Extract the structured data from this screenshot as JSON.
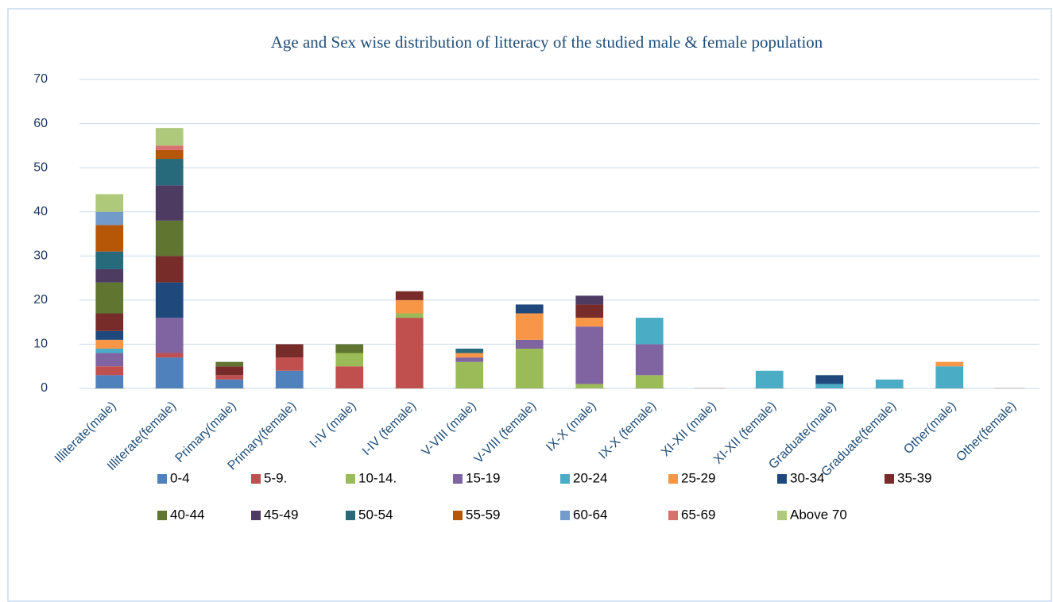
{
  "chart_data": {
    "type": "bar",
    "stacked": true,
    "title": "Age  and Sex wise distribution of litteracy of the studied male & female population",
    "categories": [
      "Illiterate(male)",
      "Illiterate(female)",
      "Primary(male)",
      "Primary(female)",
      "I-IV  (male)",
      "I-IV (female)",
      "V-VIII (male)",
      "V-VIII (female)",
      "IX-X (male)",
      "IX-X (female)",
      "XI-XII (male)",
      "XI-XII  (female)",
      "Graduate(male)",
      "Graduate(female)",
      "Other(male)",
      "Other(female)"
    ],
    "series": [
      {
        "name": "0-4",
        "color": "#4f81bd",
        "values": [
          3,
          7,
          2,
          4,
          0,
          0,
          0,
          0,
          0,
          0,
          0,
          0,
          0,
          0,
          0,
          0
        ]
      },
      {
        "name": "5-9.",
        "color": "#c0504d",
        "values": [
          2,
          1,
          1,
          3,
          5,
          16,
          0,
          0,
          0,
          0,
          0,
          0,
          0,
          0,
          0,
          0
        ]
      },
      {
        "name": "10-14.",
        "color": "#9bbb59",
        "values": [
          0,
          0,
          0,
          0,
          3,
          1,
          6,
          9,
          1,
          3,
          0,
          0,
          0,
          0,
          0,
          0
        ]
      },
      {
        "name": "15-19",
        "color": "#8064a2",
        "values": [
          3,
          8,
          0,
          0,
          0,
          0,
          1,
          2,
          13,
          7,
          0,
          0,
          0,
          0,
          0,
          0
        ]
      },
      {
        "name": "20-24",
        "color": "#4bacc6",
        "values": [
          1,
          0,
          0,
          0,
          0,
          0,
          0,
          0,
          0,
          6,
          0,
          4,
          1,
          2,
          5,
          0
        ]
      },
      {
        "name": "25-29",
        "color": "#f79646",
        "values": [
          2,
          0,
          0,
          0,
          0,
          3,
          1,
          6,
          2,
          0,
          0,
          0,
          0,
          0,
          1,
          0
        ]
      },
      {
        "name": "30-34",
        "color": "#1f497d",
        "values": [
          2,
          8,
          0,
          0,
          0,
          0,
          0,
          2,
          0,
          0,
          0,
          0,
          2,
          0,
          0,
          0
        ]
      },
      {
        "name": "35-39",
        "color": "#772c2a",
        "values": [
          4,
          6,
          2,
          3,
          0,
          2,
          0,
          0,
          3,
          0,
          0,
          0,
          0,
          0,
          0,
          0
        ]
      },
      {
        "name": "40-44",
        "color": "#5f7530",
        "values": [
          7,
          8,
          1,
          0,
          2,
          0,
          0,
          0,
          0,
          0,
          0,
          0,
          0,
          0,
          0,
          0
        ]
      },
      {
        "name": "45-49",
        "color": "#4d3b62",
        "values": [
          3,
          8,
          0,
          0,
          0,
          0,
          0,
          0,
          2,
          0,
          0,
          0,
          0,
          0,
          0,
          0
        ]
      },
      {
        "name": "50-54",
        "color": "#276a7c",
        "values": [
          4,
          6,
          0,
          0,
          0,
          0,
          1,
          0,
          0,
          0,
          0,
          0,
          0,
          0,
          0,
          0
        ]
      },
      {
        "name": "55-59",
        "color": "#b65708",
        "values": [
          6,
          2,
          0,
          0,
          0,
          0,
          0,
          0,
          0,
          0,
          0,
          0,
          0,
          0,
          0,
          0
        ]
      },
      {
        "name": "60-64",
        "color": "#729aca",
        "values": [
          3,
          0,
          0,
          0,
          0,
          0,
          0,
          0,
          0,
          0,
          0,
          0,
          0,
          0,
          0,
          0
        ]
      },
      {
        "name": "65-69",
        "color": "#d9726f",
        "values": [
          0,
          1,
          0,
          0,
          0,
          0,
          0,
          0,
          0,
          0,
          0,
          0,
          0,
          0,
          0,
          0
        ]
      },
      {
        "name": "Above 70",
        "color": "#afc97a",
        "values": [
          4,
          4,
          0,
          0,
          0,
          0,
          0,
          0,
          0,
          0,
          0,
          0,
          0,
          0,
          0,
          0
        ]
      }
    ],
    "ylim": [
      0,
      70
    ],
    "yticks": [
      0,
      10,
      20,
      30,
      40,
      50,
      60,
      70
    ],
    "grid": true,
    "legend": "bottom"
  }
}
